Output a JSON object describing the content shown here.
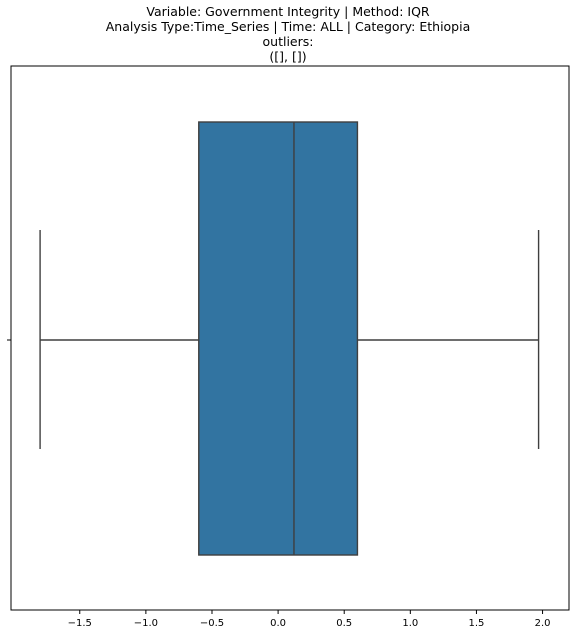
{
  "chart_data": {
    "type": "boxplot",
    "title_lines": [
      "Variable: Government Integrity | Method: IQR",
      "Analysis Type:Time_Series | Time: ALL | Category: Ethiopia",
      "outliers:",
      "([], [])"
    ],
    "orientation": "horizontal",
    "xlabel": "",
    "ylabel": "",
    "xlim": [
      -2.02,
      2.2
    ],
    "xticks": [
      -1.5,
      -1.0,
      -0.5,
      0.0,
      0.5,
      1.0,
      1.5,
      2.0
    ],
    "xtick_labels": [
      "−1.5",
      "−1.0",
      "−0.5",
      "0.0",
      "0.5",
      "1.0",
      "1.5",
      "2.0"
    ],
    "grid": false,
    "box": {
      "whisker_low": -1.8,
      "q1": -0.6,
      "median": 0.12,
      "q3": 0.6,
      "whisker_high": 1.97,
      "outliers": []
    },
    "colors": {
      "box_fill": "#3274a1",
      "line": "#3f3f3f",
      "axes": "#000000"
    }
  }
}
